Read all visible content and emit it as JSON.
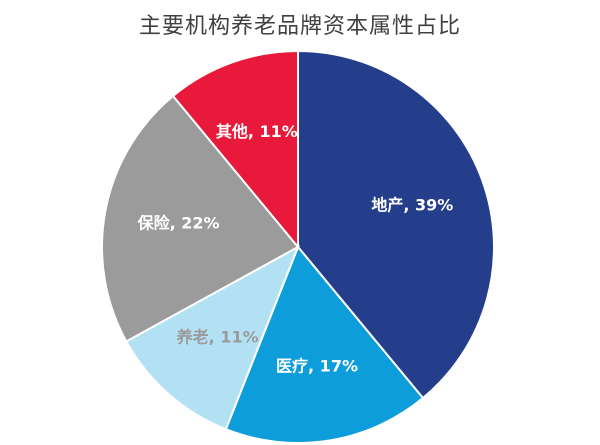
{
  "chart_data": {
    "type": "pie",
    "title": "主要机构养老品牌资本属性占比",
    "slices": [
      {
        "label": "地产, 39%",
        "name": "地产",
        "value": 39,
        "color": "#253e8c",
        "label_color": "#ffffff"
      },
      {
        "label": "医疗, 17%",
        "name": "医疗",
        "value": 17,
        "color": "#0d9ddb",
        "label_color": "#ffffff"
      },
      {
        "label": "养老, 11%",
        "name": "养老",
        "value": 11,
        "color": "#b3e1f4",
        "label_color": "#9a9a9a"
      },
      {
        "label": "保险, 22%",
        "name": "保险",
        "value": 22,
        "color": "#9b9b9b",
        "label_color": "#ffffff"
      },
      {
        "label": "其他, 11%",
        "name": "其他",
        "value": 11,
        "color": "#e8193a",
        "label_color": "#ffffff"
      }
    ],
    "legend": "none"
  }
}
